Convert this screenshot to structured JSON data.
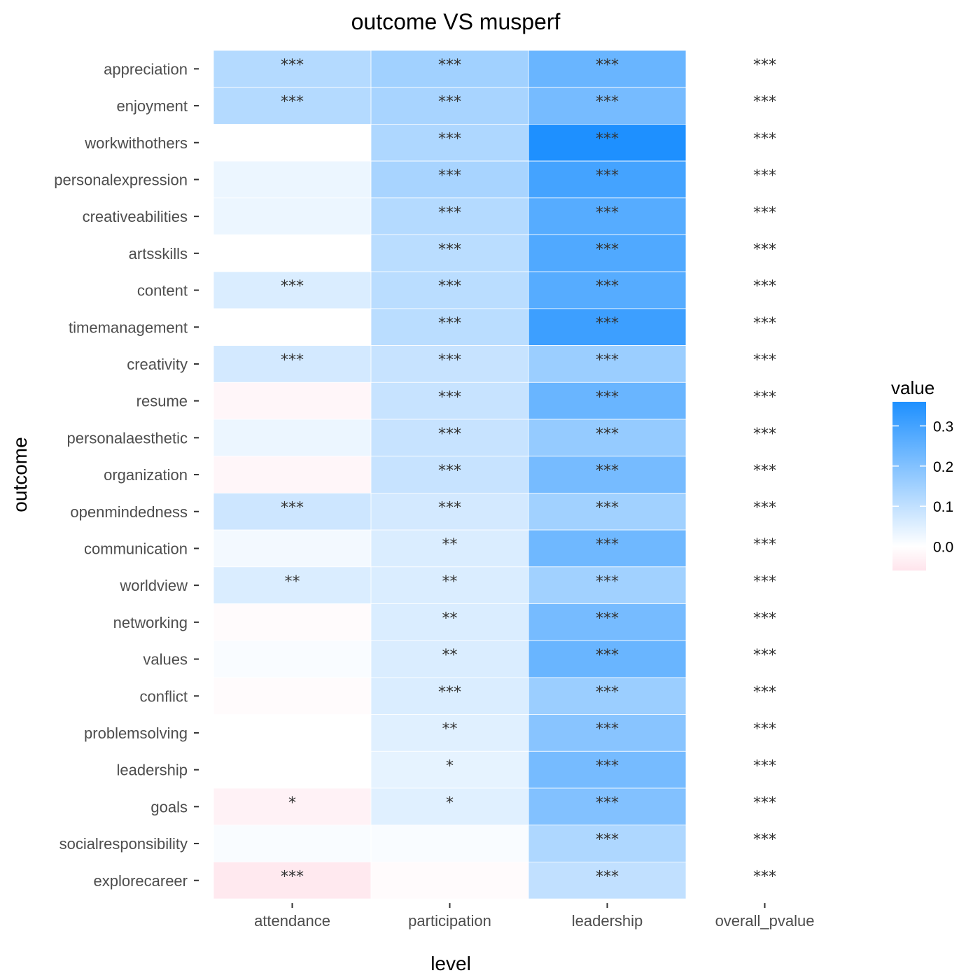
{
  "chart_data": {
    "type": "heatmap",
    "title": "outcome VS musperf",
    "xlabel": "level",
    "ylabel": "outcome",
    "x": [
      "attendance",
      "participation",
      "leadership",
      "overall_pvalue"
    ],
    "y": [
      "appreciation",
      "enjoyment",
      "workwithothers",
      "personalexpression",
      "creativeabilities",
      "artsskills",
      "content",
      "timemanagement",
      "creativity",
      "resume",
      "personalaesthetic",
      "organization",
      "openmindedness",
      "communication",
      "worldview",
      "networking",
      "values",
      "conflict",
      "problemsolving",
      "leadership",
      "goals",
      "socialresponsibility",
      "explorecareer"
    ],
    "values": [
      [
        0.12,
        0.15,
        0.24,
        null
      ],
      [
        0.12,
        0.14,
        0.22,
        null
      ],
      [
        0.0,
        0.13,
        0.36,
        null
      ],
      [
        0.03,
        0.14,
        0.3,
        null
      ],
      [
        0.03,
        0.12,
        0.27,
        null
      ],
      [
        0.0,
        0.11,
        0.28,
        null
      ],
      [
        0.06,
        0.11,
        0.27,
        null
      ],
      [
        0.0,
        0.11,
        0.31,
        null
      ],
      [
        0.07,
        0.09,
        0.16,
        null
      ],
      [
        -0.02,
        0.09,
        0.24,
        null
      ],
      [
        0.03,
        0.09,
        0.17,
        null
      ],
      [
        -0.02,
        0.09,
        0.22,
        null
      ],
      [
        0.08,
        0.07,
        0.15,
        null
      ],
      [
        0.02,
        0.06,
        0.23,
        null
      ],
      [
        0.06,
        0.06,
        0.15,
        null
      ],
      [
        -0.01,
        0.06,
        0.22,
        null
      ],
      [
        0.01,
        0.06,
        0.24,
        null
      ],
      [
        -0.01,
        0.06,
        0.16,
        null
      ],
      [
        0.0,
        0.05,
        0.19,
        null
      ],
      [
        0.0,
        0.04,
        0.22,
        null
      ],
      [
        -0.03,
        0.05,
        0.2,
        null
      ],
      [
        0.01,
        0.01,
        0.13,
        null
      ],
      [
        -0.05,
        -0.01,
        0.1,
        null
      ]
    ],
    "significance": [
      [
        "***",
        "***",
        "***",
        "***"
      ],
      [
        "***",
        "***",
        "***",
        "***"
      ],
      [
        "",
        "***",
        "***",
        "***"
      ],
      [
        "",
        "***",
        "***",
        "***"
      ],
      [
        "",
        "***",
        "***",
        "***"
      ],
      [
        "",
        "***",
        "***",
        "***"
      ],
      [
        "***",
        "***",
        "***",
        "***"
      ],
      [
        "",
        "***",
        "***",
        "***"
      ],
      [
        "***",
        "***",
        "***",
        "***"
      ],
      [
        "",
        "***",
        "***",
        "***"
      ],
      [
        "",
        "***",
        "***",
        "***"
      ],
      [
        "",
        "***",
        "***",
        "***"
      ],
      [
        "***",
        "***",
        "***",
        "***"
      ],
      [
        "",
        "**",
        "***",
        "***"
      ],
      [
        "**",
        "**",
        "***",
        "***"
      ],
      [
        "",
        "**",
        "***",
        "***"
      ],
      [
        "",
        "**",
        "***",
        "***"
      ],
      [
        "",
        "***",
        "***",
        "***"
      ],
      [
        "",
        "**",
        "***",
        "***"
      ],
      [
        "",
        "*",
        "***",
        "***"
      ],
      [
        "*",
        "*",
        "***",
        "***"
      ],
      [
        "",
        "",
        "***",
        "***"
      ],
      [
        "***",
        "",
        "***",
        "***"
      ]
    ],
    "legend": {
      "title": "value",
      "position": "right",
      "ticks": [
        "0.0",
        "0.1",
        "0.2",
        "0.3"
      ],
      "tick_values": [
        0.0,
        0.1,
        0.2,
        0.3
      ],
      "range": [
        -0.06,
        0.36
      ],
      "low_color": "#ffe4ec",
      "mid_color": "#ffffff",
      "high_color": "#1e90ff"
    },
    "grid": false
  }
}
